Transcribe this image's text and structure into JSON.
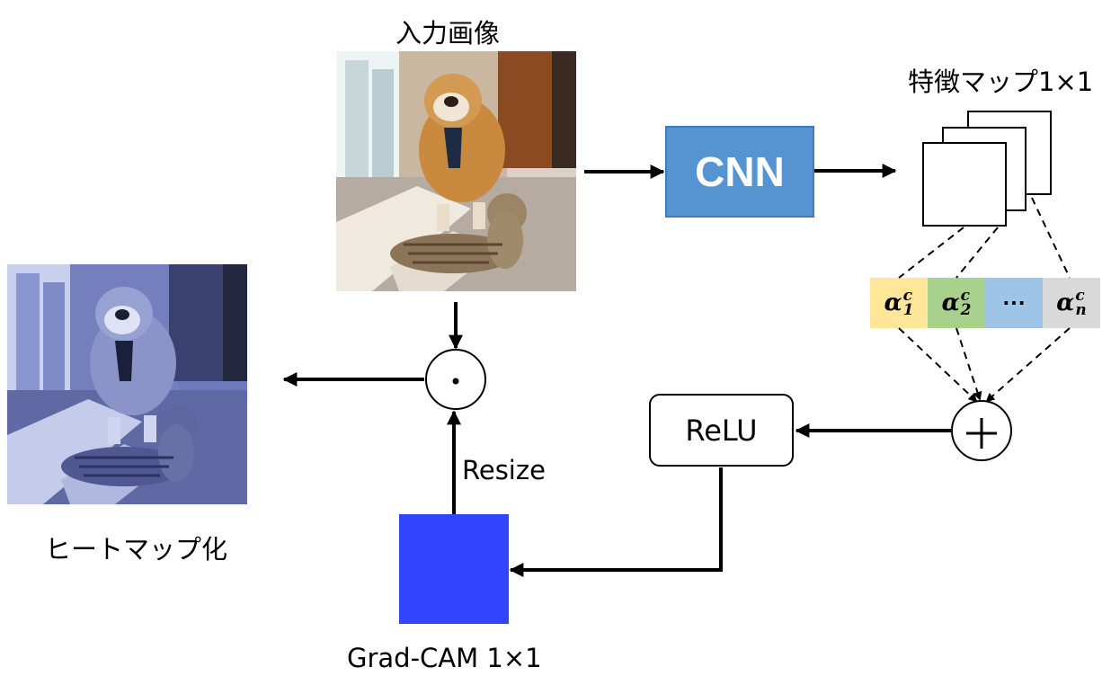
{
  "labels": {
    "input_image": "入力画像",
    "feature_map": "特徴マップ1×1",
    "heatmap": "ヒートマップ化",
    "gradcam": "Grad-CAM 1×1",
    "resize": "Resize"
  },
  "blocks": {
    "cnn": "CNN",
    "relu": "ReLU"
  },
  "operators": {
    "multiply": "·",
    "sum": "+"
  },
  "alphas": [
    {
      "symbol": "α",
      "sup": "c",
      "sub": "1",
      "color": "#ffe699"
    },
    {
      "symbol": "α",
      "sup": "c",
      "sub": "2",
      "color": "#a9d18e"
    },
    {
      "symbol": "⋯",
      "sup": "",
      "sub": "",
      "color": "#9dc3e6"
    },
    {
      "symbol": "α",
      "sup": "c",
      "sub": "n",
      "color": "#d9d9d9"
    }
  ],
  "colors": {
    "cnn": "#5694d1",
    "gradcam": "#3344ff",
    "heatmap_tint": "#5b6cb8"
  },
  "icons": {
    "input_image": "dog-and-cat-photo",
    "heatmap": "blue-tinted-dog-and-cat-photo"
  }
}
